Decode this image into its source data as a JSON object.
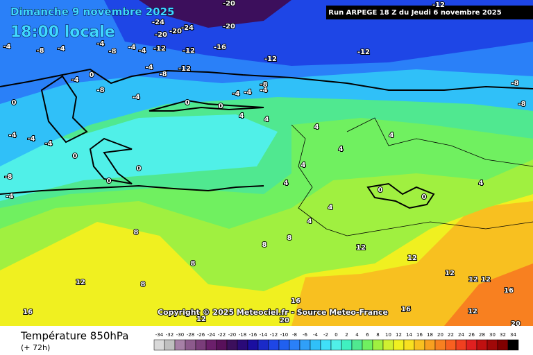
{
  "header": {
    "date": "Dimanche 9 novembre 2025",
    "time": "18:00 locale",
    "run": "Run ARPEGE 18 Z du Jeudi 6 novembre 2025"
  },
  "map": {
    "labels": [
      -4,
      -8,
      -4,
      -4,
      -8,
      -4,
      -4,
      -12,
      -12,
      -16,
      -20,
      -24,
      -20,
      -20,
      -24,
      -20,
      -12,
      -12,
      -12,
      -8,
      -8,
      -12,
      -8,
      -4,
      -4,
      -4,
      -4,
      -8,
      -4,
      0,
      -4,
      -8,
      0,
      0,
      0,
      4,
      4,
      4,
      -4,
      -4,
      -4,
      0,
      0,
      0,
      -4,
      -8,
      4,
      4,
      4,
      4,
      0,
      0,
      4,
      4,
      4,
      8,
      8,
      8,
      8,
      8,
      12,
      12,
      12,
      12,
      12,
      12,
      16,
      16,
      16,
      16,
      20,
      20,
      12,
      12
    ],
    "copyright": "Copyright © 2025 Meteociel.fr - Source Meteo-France"
  },
  "footer": {
    "title": "Température 850hPa",
    "lead": "(+ 72h)"
  },
  "legend": {
    "values": [
      -34,
      -32,
      -30,
      -28,
      -26,
      -24,
      -22,
      -20,
      -18,
      -16,
      -14,
      -12,
      -10,
      -8,
      -6,
      -4,
      -2,
      0,
      2,
      4,
      6,
      8,
      10,
      12,
      14,
      16,
      18,
      20,
      22,
      24,
      26,
      28,
      30,
      32,
      34
    ],
    "colors": [
      "#d9d9d9",
      "#bfbfbf",
      "#a680a6",
      "#8c5a8c",
      "#7a3d7a",
      "#6b1f6b",
      "#58105a",
      "#3c0f5c",
      "#2a0a78",
      "#1a0ea0",
      "#1a2ac8",
      "#1e46e6",
      "#2060f0",
      "#2a80f8",
      "#30a0f8",
      "#30c0f8",
      "#40e0f8",
      "#50f0e8",
      "#40f0c0",
      "#50e890",
      "#70f060",
      "#a0f040",
      "#d0f030",
      "#f0f020",
      "#f8e020",
      "#f8c020",
      "#f8a020",
      "#f88020",
      "#f86020",
      "#f04020",
      "#e02020",
      "#c01010",
      "#a00808",
      "#800000",
      "#000000"
    ]
  }
}
